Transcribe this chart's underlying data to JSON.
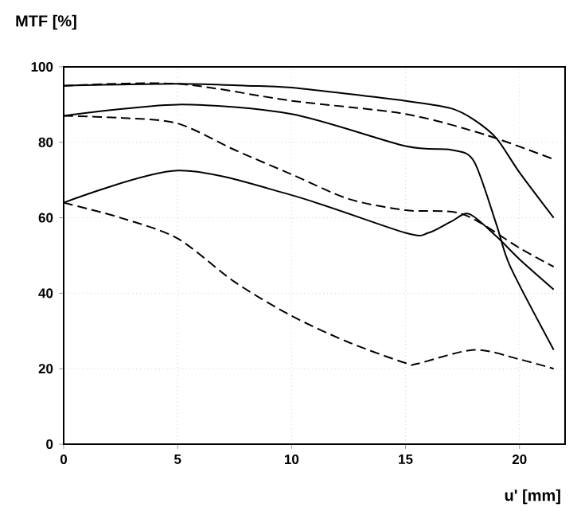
{
  "chart_data": {
    "type": "line",
    "xlabel": "u' [mm]",
    "ylabel": "MTF [%]",
    "xlim": [
      0,
      22
    ],
    "ylim": [
      0,
      100
    ],
    "xticks": [
      0,
      5,
      10,
      15,
      20
    ],
    "yticks": [
      0,
      20,
      40,
      60,
      80,
      100
    ],
    "grid": true,
    "series": [
      {
        "color": "#000000",
        "line_style": "solid",
        "x": [
          0,
          5,
          8,
          10,
          15,
          17,
          18,
          19,
          20,
          21.5
        ],
        "values": [
          95,
          95.5,
          95,
          94.5,
          91,
          89,
          86,
          81,
          72,
          60
        ]
      },
      {
        "color": "#000000",
        "line_style": "dashed",
        "x": [
          0,
          5,
          10,
          15,
          18.5,
          21.5
        ],
        "values": [
          95,
          95.5,
          91,
          87.5,
          82,
          75.5
        ]
      },
      {
        "color": "#000000",
        "line_style": "solid",
        "x": [
          0,
          5,
          10,
          15,
          17,
          18,
          19,
          19.6,
          21.5
        ],
        "values": [
          87,
          90,
          87.5,
          79,
          78,
          75,
          58,
          47,
          25
        ]
      },
      {
        "color": "#000000",
        "line_style": "dashed",
        "x": [
          0,
          2.5,
          5,
          7.5,
          10,
          12.5,
          15,
          17.5,
          20,
          21.5
        ],
        "values": [
          87,
          86.5,
          85,
          78,
          71.5,
          65,
          62,
          61,
          52,
          47
        ]
      },
      {
        "color": "#000000",
        "line_style": "solid",
        "x": [
          0,
          5,
          10,
          15,
          16,
          17,
          17.8,
          19,
          20,
          21.5
        ],
        "values": [
          64,
          72.5,
          66,
          56,
          56,
          59,
          61,
          55,
          49,
          41
        ]
      },
      {
        "color": "#000000",
        "line_style": "dashed",
        "x": [
          0,
          2.5,
          5,
          7.5,
          10,
          12.5,
          15,
          15.5,
          18,
          20,
          21.5
        ],
        "values": [
          64,
          60,
          54.5,
          43,
          34,
          27,
          21.5,
          21.3,
          25,
          22.5,
          20
        ]
      }
    ]
  }
}
